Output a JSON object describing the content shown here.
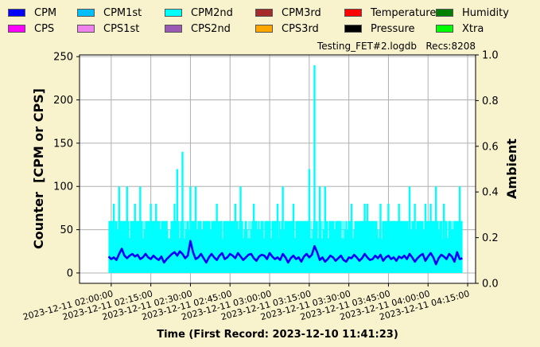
{
  "legend": [
    {
      "label": "CPM",
      "color": "#0000ff"
    },
    {
      "label": "CPM1st",
      "color": "#00bfff"
    },
    {
      "label": "CPM2nd",
      "color": "#00ffff"
    },
    {
      "label": "CPM3rd",
      "color": "#a52a2a"
    },
    {
      "label": "Temperature",
      "color": "#ff0000"
    },
    {
      "label": "Humidity",
      "color": "#008000"
    },
    {
      "label": "CPS",
      "color": "#ff00ff"
    },
    {
      "label": "CPS1st",
      "color": "#ee82ee"
    },
    {
      "label": "CPS2nd",
      "color": "#9b59b6"
    },
    {
      "label": "CPS3rd",
      "color": "#ffa500"
    },
    {
      "label": "Pressure",
      "color": "#000000"
    },
    {
      "label": "Xtra",
      "color": "#00ff00"
    }
  ],
  "file_info": "Testing_FET#2.logdb   Recs:8208",
  "chart_data": {
    "type": "line",
    "xlabel": "Time (First Record: 2023-12-10 11:41:23)",
    "ylabel": "Counter  [CPM or CPS]",
    "ylabel_right": "Ambient",
    "ylim": [
      -12,
      252
    ],
    "ylim_right": [
      0.0,
      1.0
    ],
    "xlim": [
      "2023-12-11 01:48:00",
      "2023-12-11 04:18:00"
    ],
    "yticks": [
      0,
      50,
      100,
      150,
      200,
      250
    ],
    "yticks_right": [
      "0.0",
      "0.2",
      "0.4",
      "0.6",
      "0.8",
      "1.0"
    ],
    "xticks": [
      "2023-12-11  02:00:00",
      "2023-12-11  02:15:00",
      "2023-12-11  02:30:00",
      "2023-12-11  02:45:00",
      "2023-12-11  03:00:00",
      "2023-12-11  03:15:00",
      "2023-12-11  03:30:00",
      "2023-12-11  03:45:00",
      "2023-12-11  04:00:00",
      "2023-12-11  04:15:00"
    ],
    "grid": true,
    "series": [
      {
        "name": "CPM2nd",
        "color": "#00ffff",
        "t_start": "2023-12-11 01:59:00",
        "t_end": "2023-12-11 04:13:00",
        "base": 40,
        "spikes": [
          [
            "2023-12-11 02:00:00",
            60
          ],
          [
            "2023-12-11 02:01:00",
            80
          ],
          [
            "2023-12-11 02:03:00",
            100
          ],
          [
            "2023-12-11 02:06:00",
            100
          ],
          [
            "2023-12-11 02:09:00",
            80
          ],
          [
            "2023-12-11 02:11:00",
            100
          ],
          [
            "2023-12-11 02:15:00",
            80
          ],
          [
            "2023-12-11 02:17:00",
            80
          ],
          [
            "2023-12-11 02:21:00",
            60
          ],
          [
            "2023-12-11 02:24:00",
            80
          ],
          [
            "2023-12-11 02:25:00",
            120
          ],
          [
            "2023-12-11 02:27:00",
            140
          ],
          [
            "2023-12-11 02:30:00",
            100
          ],
          [
            "2023-12-11 02:32:00",
            100
          ],
          [
            "2023-12-11 02:35:00",
            60
          ],
          [
            "2023-12-11 02:40:00",
            80
          ],
          [
            "2023-12-11 02:44:00",
            60
          ],
          [
            "2023-12-11 02:47:00",
            80
          ],
          [
            "2023-12-11 02:49:00",
            100
          ],
          [
            "2023-12-11 02:54:00",
            80
          ],
          [
            "2023-12-11 02:59:00",
            60
          ],
          [
            "2023-12-11 03:03:00",
            80
          ],
          [
            "2023-12-11 03:05:00",
            100
          ],
          [
            "2023-12-11 03:09:00",
            80
          ],
          [
            "2023-12-11 03:12:00",
            60
          ],
          [
            "2023-12-11 03:15:00",
            120
          ],
          [
            "2023-12-11 03:17:00",
            240
          ],
          [
            "2023-12-11 03:19:00",
            100
          ],
          [
            "2023-12-11 03:21:00",
            100
          ],
          [
            "2023-12-11 03:26:00",
            60
          ],
          [
            "2023-12-11 03:31:00",
            80
          ],
          [
            "2023-12-11 03:36:00",
            80
          ],
          [
            "2023-12-11 03:37:00",
            80
          ],
          [
            "2023-12-11 03:40:00",
            60
          ],
          [
            "2023-12-11 03:42:00",
            80
          ],
          [
            "2023-12-11 03:45:00",
            80
          ],
          [
            "2023-12-11 03:47:00",
            60
          ],
          [
            "2023-12-11 03:49:00",
            80
          ],
          [
            "2023-12-11 03:53:00",
            100
          ],
          [
            "2023-12-11 03:55:00",
            80
          ],
          [
            "2023-12-11 03:57:00",
            60
          ],
          [
            "2023-12-11 03:59:00",
            80
          ],
          [
            "2023-12-11 04:01:00",
            80
          ],
          [
            "2023-12-11 04:03:00",
            100
          ],
          [
            "2023-12-11 04:06:00",
            80
          ],
          [
            "2023-12-11 04:08:00",
            60
          ],
          [
            "2023-12-11 04:10:00",
            60
          ],
          [
            "2023-12-11 04:12:00",
            100
          ]
        ]
      },
      {
        "name": "CPM",
        "color": "#0000ff",
        "t_start": "2023-12-11 01:59:00",
        "t_end": "2023-12-11 04:13:00",
        "points": [
          [
            "2023-12-11 01:59:00",
            19
          ],
          [
            "2023-12-11 02:00:00",
            16
          ],
          [
            "2023-12-11 02:01:00",
            18
          ],
          [
            "2023-12-11 02:02:00",
            15
          ],
          [
            "2023-12-11 02:03:00",
            22
          ],
          [
            "2023-12-11 02:04:00",
            28
          ],
          [
            "2023-12-11 02:05:00",
            20
          ],
          [
            "2023-12-11 02:06:00",
            17
          ],
          [
            "2023-12-11 02:07:00",
            20
          ],
          [
            "2023-12-11 02:08:00",
            22
          ],
          [
            "2023-12-11 02:09:00",
            19
          ],
          [
            "2023-12-11 02:10:00",
            21
          ],
          [
            "2023-12-11 02:11:00",
            16
          ],
          [
            "2023-12-11 02:12:00",
            18
          ],
          [
            "2023-12-11 02:13:00",
            22
          ],
          [
            "2023-12-11 02:14:00",
            18
          ],
          [
            "2023-12-11 02:15:00",
            16
          ],
          [
            "2023-12-11 02:16:00",
            20
          ],
          [
            "2023-12-11 02:17:00",
            17
          ],
          [
            "2023-12-11 02:18:00",
            15
          ],
          [
            "2023-12-11 02:19:00",
            19
          ],
          [
            "2023-12-11 02:20:00",
            12
          ],
          [
            "2023-12-11 02:21:00",
            16
          ],
          [
            "2023-12-11 02:22:00",
            19
          ],
          [
            "2023-12-11 02:23:00",
            22
          ],
          [
            "2023-12-11 02:24:00",
            24
          ],
          [
            "2023-12-11 02:25:00",
            20
          ],
          [
            "2023-12-11 02:26:00",
            25
          ],
          [
            "2023-12-11 02:27:00",
            22
          ],
          [
            "2023-12-11 02:28:00",
            17
          ],
          [
            "2023-12-11 02:29:00",
            20
          ],
          [
            "2023-12-11 02:30:00",
            37
          ],
          [
            "2023-12-11 02:31:00",
            24
          ],
          [
            "2023-12-11 02:32:00",
            16
          ],
          [
            "2023-12-11 02:33:00",
            18
          ],
          [
            "2023-12-11 02:34:00",
            22
          ],
          [
            "2023-12-11 02:35:00",
            17
          ],
          [
            "2023-12-11 02:36:00",
            12
          ],
          [
            "2023-12-11 02:37:00",
            18
          ],
          [
            "2023-12-11 02:38:00",
            22
          ],
          [
            "2023-12-11 02:39:00",
            18
          ],
          [
            "2023-12-11 02:40:00",
            15
          ],
          [
            "2023-12-11 02:41:00",
            20
          ],
          [
            "2023-12-11 02:42:00",
            23
          ],
          [
            "2023-12-11 02:43:00",
            16
          ],
          [
            "2023-12-11 02:44:00",
            18
          ],
          [
            "2023-12-11 02:45:00",
            22
          ],
          [
            "2023-12-11 02:46:00",
            20
          ],
          [
            "2023-12-11 02:47:00",
            17
          ],
          [
            "2023-12-11 02:48:00",
            23
          ],
          [
            "2023-12-11 02:49:00",
            19
          ],
          [
            "2023-12-11 02:50:00",
            15
          ],
          [
            "2023-12-11 02:51:00",
            18
          ],
          [
            "2023-12-11 02:52:00",
            21
          ],
          [
            "2023-12-11 02:53:00",
            22
          ],
          [
            "2023-12-11 02:54:00",
            17
          ],
          [
            "2023-12-11 02:55:00",
            14
          ],
          [
            "2023-12-11 02:56:00",
            19
          ],
          [
            "2023-12-11 02:57:00",
            21
          ],
          [
            "2023-12-11 02:58:00",
            20
          ],
          [
            "2023-12-11 02:59:00",
            16
          ],
          [
            "2023-12-11 03:00:00",
            23
          ],
          [
            "2023-12-11 03:01:00",
            19
          ],
          [
            "2023-12-11 03:02:00",
            16
          ],
          [
            "2023-12-11 03:03:00",
            18
          ],
          [
            "2023-12-11 03:04:00",
            15
          ],
          [
            "2023-12-11 03:05:00",
            22
          ],
          [
            "2023-12-11 03:06:00",
            18
          ],
          [
            "2023-12-11 03:07:00",
            12
          ],
          [
            "2023-12-11 03:08:00",
            17
          ],
          [
            "2023-12-11 03:09:00",
            20
          ],
          [
            "2023-12-11 03:10:00",
            16
          ],
          [
            "2023-12-11 03:11:00",
            18
          ],
          [
            "2023-12-11 03:12:00",
            13
          ],
          [
            "2023-12-11 03:13:00",
            19
          ],
          [
            "2023-12-11 03:14:00",
            22
          ],
          [
            "2023-12-11 03:15:00",
            18
          ],
          [
            "2023-12-11 03:16:00",
            21
          ],
          [
            "2023-12-11 03:17:00",
            31
          ],
          [
            "2023-12-11 03:18:00",
            24
          ],
          [
            "2023-12-11 03:19:00",
            15
          ],
          [
            "2023-12-11 03:20:00",
            18
          ],
          [
            "2023-12-11 03:21:00",
            13
          ],
          [
            "2023-12-11 03:22:00",
            16
          ],
          [
            "2023-12-11 03:23:00",
            20
          ],
          [
            "2023-12-11 03:24:00",
            18
          ],
          [
            "2023-12-11 03:25:00",
            14
          ],
          [
            "2023-12-11 03:26:00",
            17
          ],
          [
            "2023-12-11 03:27:00",
            20
          ],
          [
            "2023-12-11 03:28:00",
            15
          ],
          [
            "2023-12-11 03:29:00",
            13
          ],
          [
            "2023-12-11 03:30:00",
            18
          ],
          [
            "2023-12-11 03:31:00",
            17
          ],
          [
            "2023-12-11 03:32:00",
            21
          ],
          [
            "2023-12-11 03:33:00",
            18
          ],
          [
            "2023-12-11 03:34:00",
            14
          ],
          [
            "2023-12-11 03:35:00",
            17
          ],
          [
            "2023-12-11 03:36:00",
            22
          ],
          [
            "2023-12-11 03:37:00",
            18
          ],
          [
            "2023-12-11 03:38:00",
            15
          ],
          [
            "2023-12-11 03:39:00",
            16
          ],
          [
            "2023-12-11 03:40:00",
            20
          ],
          [
            "2023-12-11 03:41:00",
            17
          ],
          [
            "2023-12-11 03:42:00",
            21
          ],
          [
            "2023-12-11 03:43:00",
            14
          ],
          [
            "2023-12-11 03:44:00",
            18
          ],
          [
            "2023-12-11 03:45:00",
            20
          ],
          [
            "2023-12-11 03:46:00",
            16
          ],
          [
            "2023-12-11 03:47:00",
            18
          ],
          [
            "2023-12-11 03:48:00",
            14
          ],
          [
            "2023-12-11 03:49:00",
            19
          ],
          [
            "2023-12-11 03:50:00",
            17
          ],
          [
            "2023-12-11 03:51:00",
            20
          ],
          [
            "2023-12-11 03:52:00",
            16
          ],
          [
            "2023-12-11 03:53:00",
            22
          ],
          [
            "2023-12-11 03:54:00",
            18
          ],
          [
            "2023-12-11 03:55:00",
            13
          ],
          [
            "2023-12-11 03:56:00",
            17
          ],
          [
            "2023-12-11 03:57:00",
            20
          ],
          [
            "2023-12-11 03:58:00",
            22
          ],
          [
            "2023-12-11 03:59:00",
            14
          ],
          [
            "2023-12-11 04:00:00",
            19
          ],
          [
            "2023-12-11 04:01:00",
            23
          ],
          [
            "2023-12-11 04:02:00",
            18
          ],
          [
            "2023-12-11 04:03:00",
            10
          ],
          [
            "2023-12-11 04:04:00",
            17
          ],
          [
            "2023-12-11 04:05:00",
            21
          ],
          [
            "2023-12-11 04:06:00",
            19
          ],
          [
            "2023-12-11 04:07:00",
            16
          ],
          [
            "2023-12-11 04:08:00",
            22
          ],
          [
            "2023-12-11 04:09:00",
            19
          ],
          [
            "2023-12-11 04:10:00",
            13
          ],
          [
            "2023-12-11 04:11:00",
            24
          ],
          [
            "2023-12-11 04:12:00",
            16
          ],
          [
            "2023-12-11 04:13:00",
            17
          ]
        ]
      }
    ]
  }
}
